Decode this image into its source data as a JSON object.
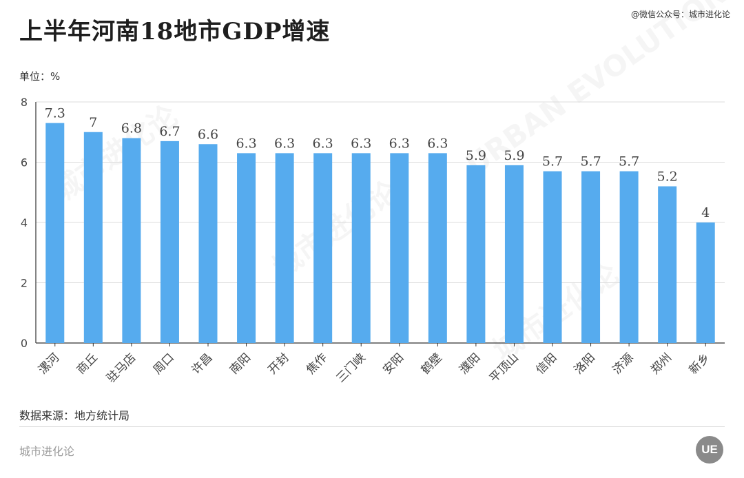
{
  "header": {
    "title": "上半年河南18地市GDP增速",
    "credit": "@微信公众号：城市进化论"
  },
  "unit_label": "单位：%",
  "source_label": "数据来源：地方统计局",
  "footer": {
    "brand": "城市进化论",
    "logo_text": "UE"
  },
  "watermark": {
    "text": "城市进化论",
    "subtext": "URBAN EVOLUTION"
  },
  "colors": {
    "bar": "#56abee",
    "grid": "#dcdcdc",
    "axis": "#333333",
    "label": "#444444"
  },
  "chart_data": {
    "type": "bar",
    "title": "上半年河南18地市GDP增速",
    "xlabel": "",
    "ylabel": "",
    "ylim": [
      0,
      8
    ],
    "yticks": [
      0,
      2,
      4,
      6,
      8
    ],
    "grid": true,
    "categories": [
      "漯河",
      "商丘",
      "驻马店",
      "周口",
      "许昌",
      "南阳",
      "开封",
      "焦作",
      "三门峡",
      "安阳",
      "鹤壁",
      "濮阳",
      "平顶山",
      "信阳",
      "洛阳",
      "济源",
      "郑州",
      "新乡"
    ],
    "values": [
      7.3,
      7,
      6.8,
      6.7,
      6.6,
      6.3,
      6.3,
      6.3,
      6.3,
      6.3,
      6.3,
      5.9,
      5.9,
      5.7,
      5.7,
      5.7,
      5.2,
      4
    ],
    "value_labels": [
      "7.3",
      "7",
      "6.8",
      "6.7",
      "6.6",
      "6.3",
      "6.3",
      "6.3",
      "6.3",
      "6.3",
      "6.3",
      "5.9",
      "5.9",
      "5.7",
      "5.7",
      "5.7",
      "5.2",
      "4"
    ]
  }
}
